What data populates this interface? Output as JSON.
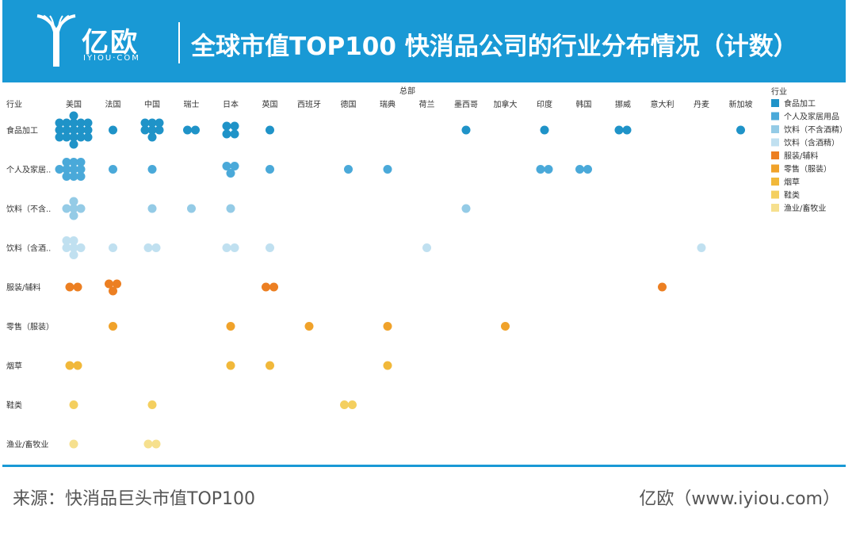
{
  "header": {
    "logo_cn": "亿欧",
    "logo_en": "IYIOU·COM",
    "title": "全球市值TOP100 快消品公司的行业分布情况（计数）"
  },
  "footer": {
    "source": "来源：快消品巨头市值TOP100",
    "site": "亿欧（www.iyiou.com）"
  },
  "chart_data": {
    "type": "scatter",
    "title": "全球市值TOP100 快消品公司的行业分布情况（计数）",
    "xlabel": "总部",
    "ylabel": "行业",
    "columns": [
      "美国",
      "法国",
      "中国",
      "瑞士",
      "日本",
      "英国",
      "西班牙",
      "德国",
      "瑞典",
      "荷兰",
      "墨西哥",
      "加拿大",
      "印度",
      "韩国",
      "挪威",
      "意大利",
      "丹麦",
      "新加坡"
    ],
    "rows": [
      {
        "label": "食品加工",
        "display": "食品加工"
      },
      {
        "label": "个人及家居用品",
        "display": "个人及家居.."
      },
      {
        "label": "饮料（不含酒精）",
        "display": "饮料（不含.."
      },
      {
        "label": "饮料（含酒精）",
        "display": "饮料（含酒.."
      },
      {
        "label": "服装/辅料",
        "display": "服装/辅料"
      },
      {
        "label": "零售（服装）",
        "display": "零售（服装）"
      },
      {
        "label": "烟草",
        "display": "烟草"
      },
      {
        "label": "鞋类",
        "display": "鞋类"
      },
      {
        "label": "渔业/畜牧业",
        "display": "渔业/畜牧业"
      }
    ],
    "counts": [
      [
        17,
        1,
        7,
        2,
        4,
        1,
        0,
        0,
        0,
        0,
        1,
        0,
        1,
        0,
        2,
        0,
        0,
        1
      ],
      [
        10,
        1,
        1,
        0,
        3,
        1,
        0,
        1,
        1,
        0,
        0,
        0,
        2,
        2,
        0,
        0,
        0,
        0
      ],
      [
        5,
        0,
        1,
        1,
        1,
        0,
        0,
        0,
        0,
        0,
        1,
        0,
        0,
        0,
        0,
        0,
        0,
        0
      ],
      [
        6,
        1,
        2,
        0,
        2,
        1,
        0,
        0,
        0,
        1,
        0,
        0,
        0,
        0,
        0,
        0,
        1,
        0
      ],
      [
        2,
        3,
        0,
        0,
        0,
        2,
        0,
        0,
        0,
        0,
        0,
        0,
        0,
        0,
        0,
        1,
        0,
        0
      ],
      [
        0,
        1,
        0,
        0,
        1,
        0,
        1,
        0,
        1,
        0,
        0,
        1,
        0,
        0,
        0,
        0,
        0,
        0
      ],
      [
        2,
        0,
        0,
        0,
        1,
        1,
        0,
        0,
        1,
        0,
        0,
        0,
        0,
        0,
        0,
        0,
        0,
        0
      ],
      [
        1,
        0,
        1,
        0,
        0,
        0,
        0,
        2,
        0,
        0,
        0,
        0,
        0,
        0,
        0,
        0,
        0,
        0
      ],
      [
        1,
        0,
        2,
        0,
        0,
        0,
        0,
        0,
        0,
        0,
        0,
        0,
        0,
        0,
        0,
        0,
        0,
        0
      ]
    ],
    "legend": {
      "title": "行业",
      "position": "right",
      "items": [
        {
          "label": "食品加工",
          "color": "#1f93c8"
        },
        {
          "label": "个人及家居用品",
          "color": "#4aa9d9"
        },
        {
          "label": "饮料（不含酒精）",
          "color": "#94cbe6"
        },
        {
          "label": "饮料（含酒精）",
          "color": "#c0e0f0"
        },
        {
          "label": "服装/辅料",
          "color": "#ec7f22"
        },
        {
          "label": "零售（服装）",
          "color": "#f0a22a"
        },
        {
          "label": "烟草",
          "color": "#f1b83a"
        },
        {
          "label": "鞋类",
          "color": "#f4cf5f"
        },
        {
          "label": "渔业/畜牧业",
          "color": "#f6e08e"
        }
      ]
    }
  }
}
